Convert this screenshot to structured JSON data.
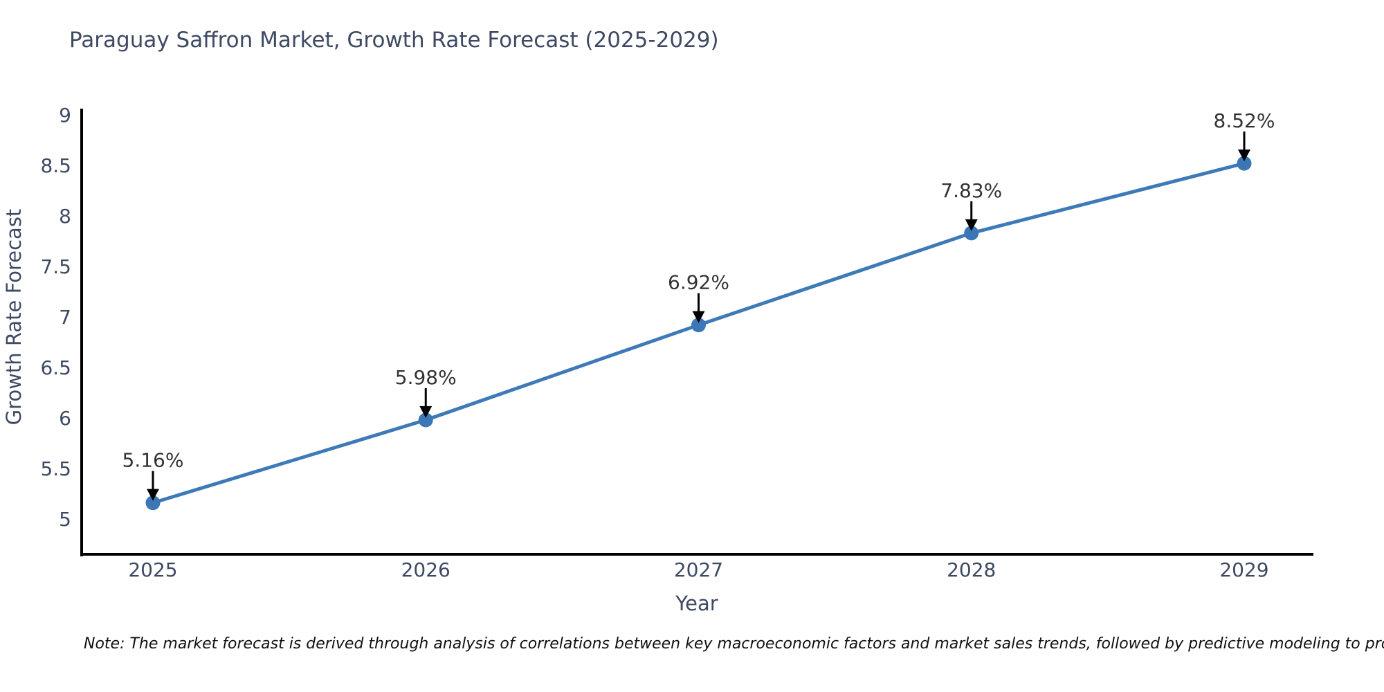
{
  "title": "Paraguay Saffron Market, Growth Rate Forecast (2025-2029)",
  "note": "Note: The market forecast is derived through analysis of correlations between key macroeconomic factors and market sales trends, followed by predictive modeling to project future sales",
  "chart_data": {
    "type": "line",
    "title": "Paraguay Saffron Market, Growth Rate Forecast (2025-2029)",
    "xlabel": "Year",
    "ylabel": "Growth Rate Forecast",
    "categories": [
      "2025",
      "2026",
      "2027",
      "2028",
      "2029"
    ],
    "series": [
      {
        "name": "Growth Rate Forecast",
        "values": [
          5.16,
          5.98,
          6.92,
          7.83,
          8.52
        ]
      }
    ],
    "data_labels": [
      "5.16%",
      "5.98%",
      "6.92%",
      "7.83%",
      "8.52%"
    ],
    "y_ticks": [
      5,
      5.5,
      6,
      6.5,
      7,
      7.5,
      8,
      8.5,
      9
    ],
    "ylim": [
      4.6,
      9
    ],
    "grid": false,
    "legend_position": "none",
    "colors": {
      "line": "#3d7ab7",
      "marker": "#3a77b4",
      "axis_spine": "#000000",
      "tick_text": "#3e4a64",
      "axis_title_text": "#3e4a64",
      "annotation_text": "#333333",
      "annotation_arrow": "#000000"
    }
  }
}
